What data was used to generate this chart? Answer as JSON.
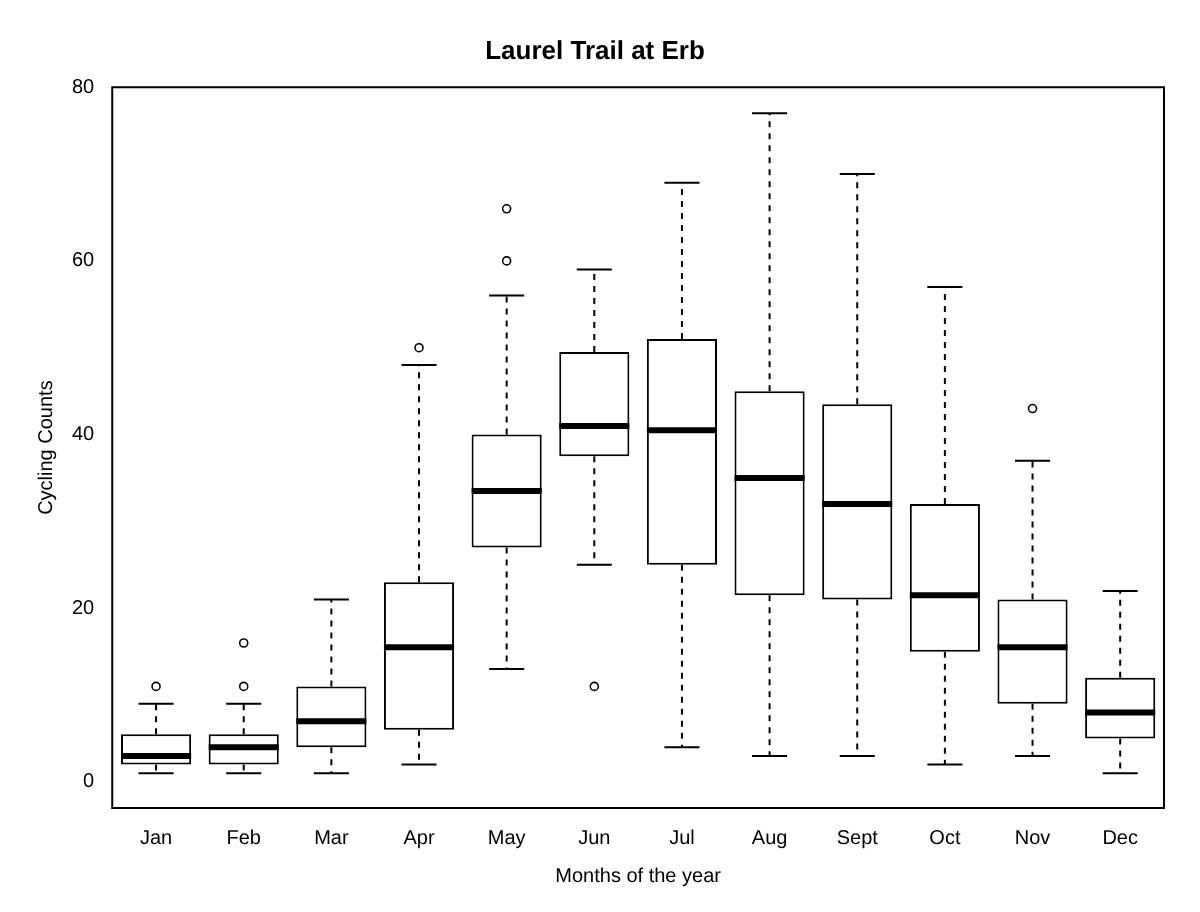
{
  "chart_data": {
    "type": "box",
    "title": "Laurel Trail at Erb",
    "xlabel": "Months of the year",
    "ylabel": "Cycling Counts",
    "categories": [
      "Jan",
      "Feb",
      "Mar",
      "Apr",
      "May",
      "Jun",
      "Jul",
      "Aug",
      "Sept",
      "Oct",
      "Nov",
      "Dec"
    ],
    "boxes": [
      {
        "low": 1,
        "q1": 2,
        "median": 3,
        "q3": 5.5,
        "high": 9,
        "outliers": [
          11
        ]
      },
      {
        "low": 1,
        "q1": 2,
        "median": 4,
        "q3": 5.5,
        "high": 9,
        "outliers": [
          11,
          16
        ]
      },
      {
        "low": 1,
        "q1": 4,
        "median": 7,
        "q3": 11,
        "high": 21
      },
      {
        "low": 2,
        "q1": 6,
        "median": 15.5,
        "q3": 23,
        "high": 48,
        "outliers": [
          50
        ]
      },
      {
        "low": 13,
        "q1": 27,
        "median": 33.5,
        "q3": 40,
        "high": 56,
        "outliers": [
          60,
          66
        ]
      },
      {
        "low": 25,
        "q1": 37.5,
        "median": 41,
        "q3": 49.5,
        "high": 59,
        "outliers": [
          11
        ]
      },
      {
        "low": 4,
        "q1": 25,
        "median": 40.5,
        "q3": 51,
        "high": 69
      },
      {
        "low": 3,
        "q1": 21.5,
        "median": 35,
        "q3": 45,
        "high": 77
      },
      {
        "low": 3,
        "q1": 21,
        "median": 32,
        "q3": 43.5,
        "high": 70
      },
      {
        "low": 2,
        "q1": 15,
        "median": 21.5,
        "q3": 32,
        "high": 57
      },
      {
        "low": 3,
        "q1": 9,
        "median": 15.5,
        "q3": 21,
        "high": 37,
        "outliers": [
          43
        ]
      },
      {
        "low": 1,
        "q1": 5,
        "median": 8,
        "q3": 12,
        "high": 22
      }
    ],
    "ylim": [
      -3,
      80
    ],
    "yticks": [
      0,
      20,
      40,
      60,
      80
    ],
    "grid": false,
    "legend": false
  }
}
